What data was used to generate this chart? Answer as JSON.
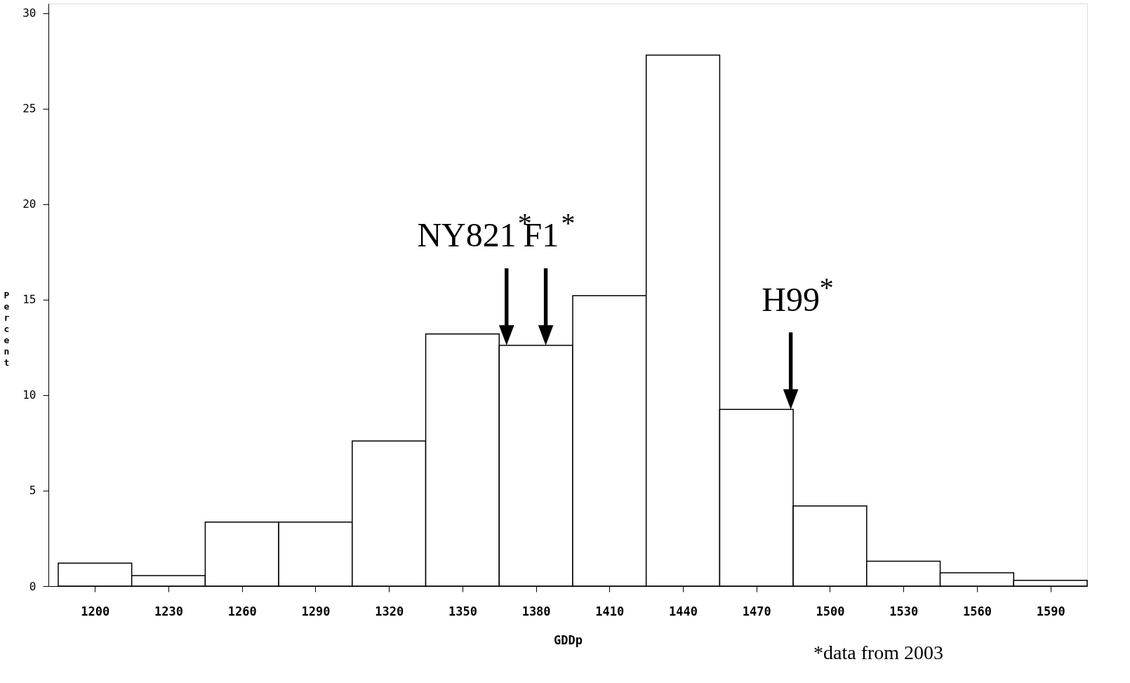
{
  "chart_data": {
    "type": "histogram",
    "bins": [
      1185,
      1215,
      1245,
      1275,
      1305,
      1335,
      1365,
      1395,
      1425,
      1455,
      1485,
      1515,
      1545,
      1575,
      1605
    ],
    "values": [
      1.2,
      0.55,
      3.35,
      3.35,
      7.6,
      13.2,
      12.6,
      15.2,
      27.8,
      9.25,
      4.2,
      1.3,
      0.7,
      0.3
    ],
    "color": "#ffffff",
    "xlabel": "GDDp",
    "ylabel": "Percent",
    "xlim": [
      1181,
      1605
    ],
    "ylim": [
      0,
      30.5
    ],
    "xticks": [
      1200,
      1230,
      1260,
      1290,
      1320,
      1350,
      1380,
      1410,
      1440,
      1470,
      1500,
      1530,
      1560,
      1590
    ],
    "yticks": [
      0,
      5,
      10,
      15,
      20,
      25,
      30
    ],
    "grid": false,
    "annotations": [
      {
        "text": "NY821$^{*}$",
        "x": 1368,
        "y": 12.6
      },
      {
        "text": "F1$^{*}$",
        "x": 1384,
        "y": 12.6
      },
      {
        "text": "H99$^{*}$",
        "x": 1484,
        "y": 9.25
      },
      "*data from 2003"
    ]
  }
}
